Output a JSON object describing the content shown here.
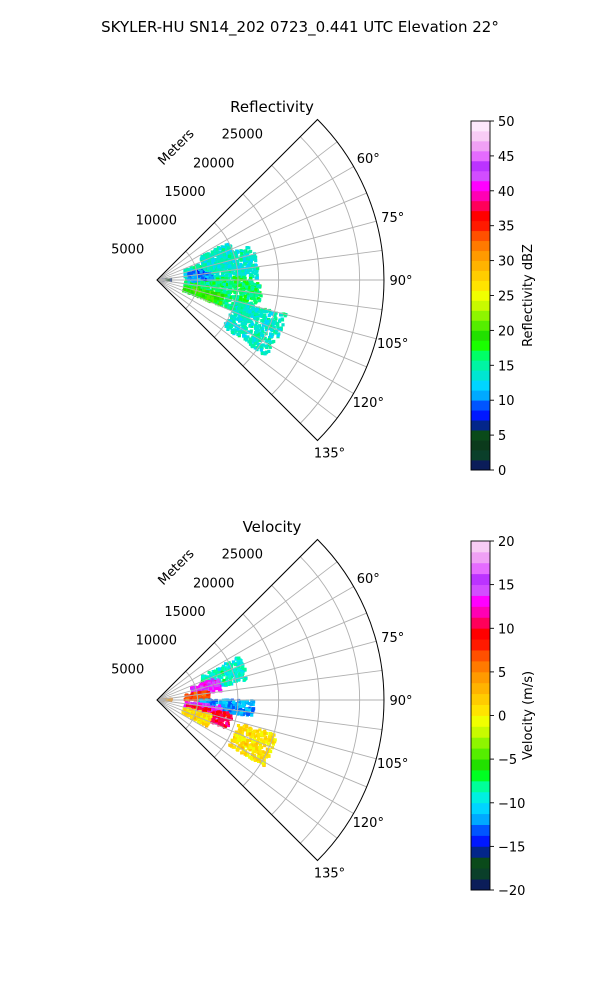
{
  "figure": {
    "title": "SKYLER-HU  SN14_202  0723_0.441 UTC Elevation 22°"
  },
  "chart_data": [
    {
      "type": "heatmap",
      "title": "Reflectivity",
      "radial_axis_label": "Meters",
      "radial_ticks": [
        5000,
        10000,
        15000,
        20000,
        25000
      ],
      "radial_tick_labels": [
        "5000",
        "10000",
        "15000",
        "20000",
        "25000"
      ],
      "rlim": [
        0,
        28000
      ],
      "azimuth_range_deg": [
        45,
        135
      ],
      "azimuth_ticks_deg": [
        60,
        75,
        90,
        105,
        120,
        135
      ],
      "azimuth_tick_labels": [
        "60°",
        "75°",
        "90°",
        "105°",
        "120°",
        "135°"
      ],
      "grid": true,
      "colorbar": {
        "label": "Reflectivity dBZ",
        "range": [
          0,
          50
        ],
        "ticks": [
          0,
          5,
          10,
          15,
          20,
          25,
          30,
          35,
          40,
          45,
          50
        ],
        "tick_labels": [
          "0",
          "5",
          "10",
          "15",
          "20",
          "25",
          "30",
          "35",
          "40",
          "45",
          "50"
        ],
        "colors": [
          "#0b1d59",
          "#0a3f2a",
          "#0b3a1c",
          "#0a4a1a",
          "#03268a",
          "#0018ff",
          "#0055ff",
          "#00a9ff",
          "#00d5ff",
          "#00e6d2",
          "#00f5a3",
          "#00ff66",
          "#1aff00",
          "#22e000",
          "#55ee00",
          "#8ef500",
          "#c8fa00",
          "#f0ff00",
          "#ffe400",
          "#ffcc00",
          "#ffb300",
          "#ff9a00",
          "#ff7a00",
          "#ff5000",
          "#ff1a00",
          "#ff0000",
          "#ff005a",
          "#ff00b4",
          "#ff00ff",
          "#d24dff",
          "#bb33ff",
          "#e56bff",
          "#f0a0f5",
          "#f8ccf5",
          "#fde8fb"
        ]
      },
      "echo_regions": [
        {
          "az_range": [
            70,
            89
          ],
          "r_range": [
            3500,
            12500
          ],
          "value": 14
        },
        {
          "az_range": [
            92,
            112
          ],
          "r_range": [
            3500,
            13000
          ],
          "value": 16
        },
        {
          "az_range": [
            88,
            95
          ],
          "r_range": [
            5000,
            12000
          ],
          "value": 16
        },
        {
          "az_range": [
            102,
            112
          ],
          "r_range": [
            3500,
            8500
          ],
          "value": 19
        },
        {
          "az_range": [
            77,
            92
          ],
          "r_range": [
            3800,
            6800
          ],
          "value": 10
        },
        {
          "az_range": [
            86,
            91
          ],
          "r_range": [
            500,
            1800
          ],
          "value": 6
        },
        {
          "az_range": [
            105,
            125
          ],
          "r_range": [
            10000,
            16500
          ],
          "value": 14
        },
        {
          "az_range": [
            62,
            80
          ],
          "r_range": [
            6000,
            10000
          ],
          "value": 14
        }
      ]
    },
    {
      "type": "heatmap",
      "title": "Velocity",
      "radial_axis_label": "Meters",
      "radial_ticks": [
        5000,
        10000,
        15000,
        20000,
        25000
      ],
      "radial_tick_labels": [
        "5000",
        "10000",
        "15000",
        "20000",
        "25000"
      ],
      "rlim": [
        0,
        28000
      ],
      "azimuth_range_deg": [
        45,
        135
      ],
      "azimuth_ticks_deg": [
        60,
        75,
        90,
        105,
        120,
        135
      ],
      "azimuth_tick_labels": [
        "60°",
        "75°",
        "90°",
        "105°",
        "120°",
        "135°"
      ],
      "grid": true,
      "colorbar": {
        "label": "Velocity (m/s)",
        "range": [
          -20,
          20
        ],
        "ticks": [
          -20,
          -15,
          -10,
          -5,
          0,
          5,
          10,
          15,
          20
        ],
        "tick_labels": [
          "−20",
          "−15",
          "−10",
          "−5",
          "0",
          "5",
          "10",
          "15",
          "20"
        ],
        "colors": [
          "#0b1d59",
          "#0a3f2a",
          "#0a4a1a",
          "#03268a",
          "#0018ff",
          "#0055ff",
          "#00a9ff",
          "#00d5ff",
          "#00f0e0",
          "#00ff99",
          "#00ff22",
          "#22e000",
          "#55ee00",
          "#8ef500",
          "#c8fa00",
          "#f0ff00",
          "#ffe400",
          "#ffcc00",
          "#ffb300",
          "#ff9a00",
          "#ff7a00",
          "#ff5000",
          "#ff1a00",
          "#ff0000",
          "#ff005a",
          "#ff00b4",
          "#ff00ff",
          "#d24dff",
          "#bb33ff",
          "#e56bff",
          "#f0a0f5",
          "#f8ccf5"
        ]
      },
      "echo_regions": [
        {
          "az_range": [
            62,
            78
          ],
          "r_range": [
            6000,
            11500
          ],
          "value": -9
        },
        {
          "az_range": [
            70,
            82
          ],
          "r_range": [
            4500,
            8000
          ],
          "value": 14
        },
        {
          "az_range": [
            80,
            90
          ],
          "r_range": [
            3500,
            6500
          ],
          "value": 7
        },
        {
          "az_range": [
            90,
            100
          ],
          "r_range": [
            5000,
            12000
          ],
          "value": -12
        },
        {
          "az_range": [
            95,
            106
          ],
          "r_range": [
            3500,
            8000
          ],
          "value": 14
        },
        {
          "az_range": [
            100,
            112
          ],
          "r_range": [
            3800,
            9500
          ],
          "value": 10
        },
        {
          "az_range": [
            105,
            118
          ],
          "r_range": [
            3500,
            7000
          ],
          "value": 1
        },
        {
          "az_range": [
            106,
            122
          ],
          "r_range": [
            10500,
            15500
          ],
          "value": 1
        },
        {
          "az_range": [
            86,
            91
          ],
          "r_range": [
            500,
            1800
          ],
          "value": 5
        }
      ]
    }
  ]
}
